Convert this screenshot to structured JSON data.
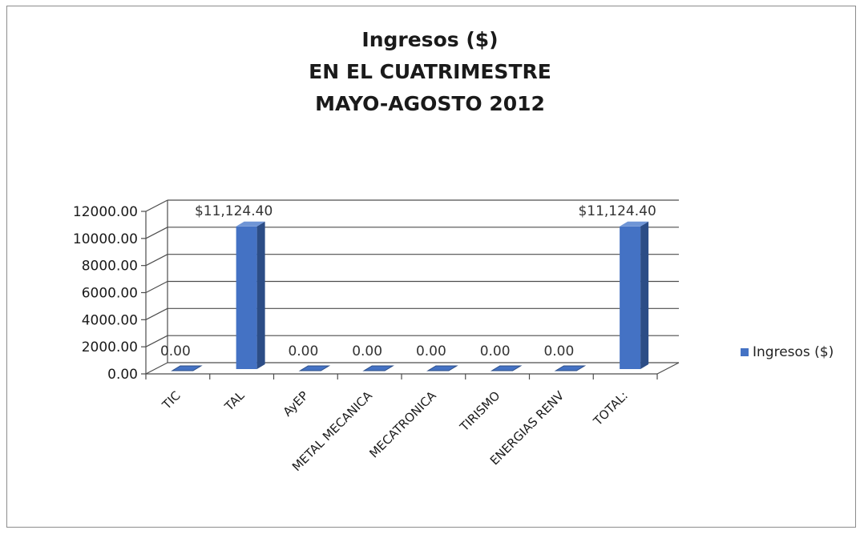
{
  "title": {
    "line1": "Ingresos ($)",
    "line2": "EN EL CUATRIMESTRE",
    "line3": "MAYO-AGOSTO 2012"
  },
  "colors": {
    "bar_front": "#4472c4",
    "bar_side": "#2c4d86",
    "bar_top": "#6f95d6",
    "grid": "#4d4d4d"
  },
  "chart_data": {
    "type": "bar",
    "title": "Ingresos ($) EN EL CUATRIMESTRE MAYO-AGOSTO 2012",
    "categories": [
      "TIC",
      "TAL",
      "AyEP",
      "METAL MECANICA",
      "MECATRONICA",
      "TIRISMO",
      "ENERGIAS RENV",
      "TOTAL:"
    ],
    "series": [
      {
        "name": "Ingresos ($)",
        "values": [
          0,
          11124.4,
          0,
          0,
          0,
          0,
          0,
          11124.4
        ]
      }
    ],
    "data_labels": [
      "0.00",
      "$11,124.40",
      "0.00",
      "0.00",
      "0.00",
      "0.00",
      "0.00",
      "$11,124.40"
    ],
    "y_ticks": [
      "0.00",
      "2000.00",
      "4000.00",
      "6000.00",
      "8000.00",
      "10000.00",
      "12000.00"
    ],
    "ylim": [
      0,
      12000
    ],
    "grid": true,
    "legend_position": "right",
    "style": "3d-column"
  }
}
